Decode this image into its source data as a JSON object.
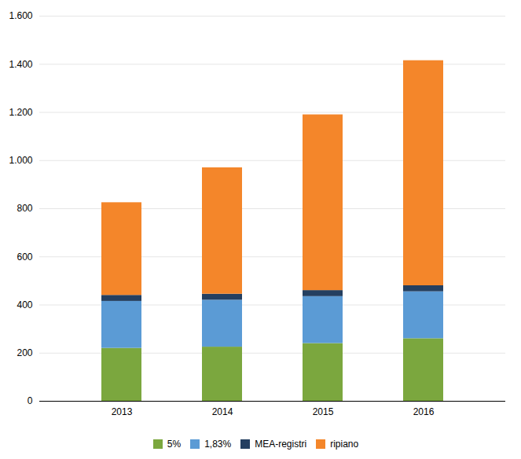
{
  "chart_data": {
    "type": "bar",
    "stacked": true,
    "categories": [
      "2013",
      "2014",
      "2015",
      "2016"
    ],
    "series": [
      {
        "name": "5%",
        "color": "#7BA73E",
        "values": [
          220,
          225,
          240,
          260
        ]
      },
      {
        "name": "1,83%",
        "color": "#5B9BD5",
        "values": [
          195,
          195,
          195,
          195
        ]
      },
      {
        "name": "MEA-registri",
        "color": "#243F60",
        "values": [
          25,
          25,
          25,
          25
        ]
      },
      {
        "name": "ripiano",
        "color": "#F4862A",
        "values": [
          385,
          525,
          730,
          935
        ]
      }
    ],
    "ylim": [
      0,
      1600
    ],
    "yticks": [
      0,
      200,
      400,
      600,
      800,
      {
        "value": 1000,
        "label": "1.000"
      },
      {
        "value": 1200,
        "label": "1.200"
      },
      {
        "value": 1400,
        "label": "1.400"
      },
      {
        "value": 1600,
        "label": "1.600"
      }
    ],
    "grid": true,
    "legend": "bottom"
  }
}
